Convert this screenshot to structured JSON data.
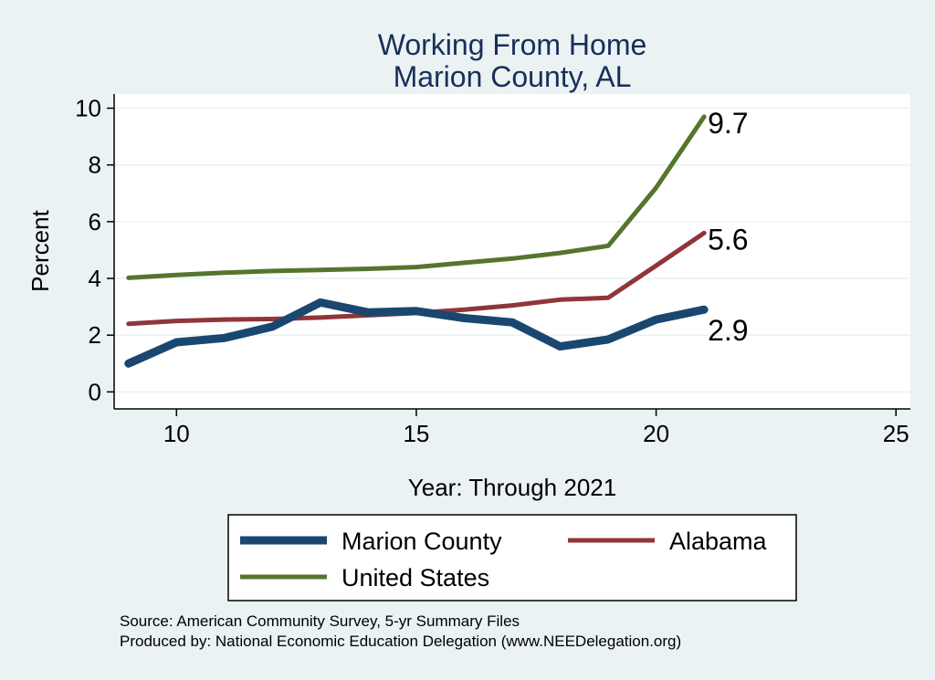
{
  "chart_data": {
    "type": "line",
    "title": [
      "Working From Home",
      "Marion County, AL"
    ],
    "xlabel": "Year: Through 2021",
    "ylabel": "Percent",
    "xlim": [
      8.7,
      25.3
    ],
    "ylim": [
      -0.6,
      10.5
    ],
    "xticks": [
      10,
      15,
      20,
      25
    ],
    "yticks": [
      0,
      2,
      4,
      6,
      8,
      10
    ],
    "grid": "horizontal",
    "legend_position": "bottom",
    "x": [
      9,
      10,
      11,
      12,
      13,
      14,
      15,
      16,
      17,
      18,
      19,
      20,
      21
    ],
    "series": [
      {
        "name": "Marion County",
        "color": "#1a476f",
        "values": [
          1.0,
          1.75,
          1.9,
          2.3,
          3.15,
          2.8,
          2.85,
          2.6,
          2.45,
          1.6,
          1.85,
          2.55,
          2.9
        ],
        "end_label": "2.9"
      },
      {
        "name": "Alabama",
        "color": "#90353b",
        "values": [
          2.4,
          2.5,
          2.55,
          2.57,
          2.62,
          2.7,
          2.78,
          2.9,
          3.05,
          3.25,
          3.32,
          4.45,
          5.6
        ],
        "end_label": "5.6"
      },
      {
        "name": "United States",
        "color": "#55752f",
        "values": [
          4.02,
          4.12,
          4.2,
          4.26,
          4.3,
          4.34,
          4.4,
          4.55,
          4.7,
          4.9,
          5.15,
          7.2,
          9.7
        ],
        "end_label": "9.7"
      }
    ],
    "notes": [
      "Source: American Community Survey, 5-yr Summary Files",
      "Produced by: National Economic Education Delegation (www.NEEDelegation.org)"
    ]
  }
}
